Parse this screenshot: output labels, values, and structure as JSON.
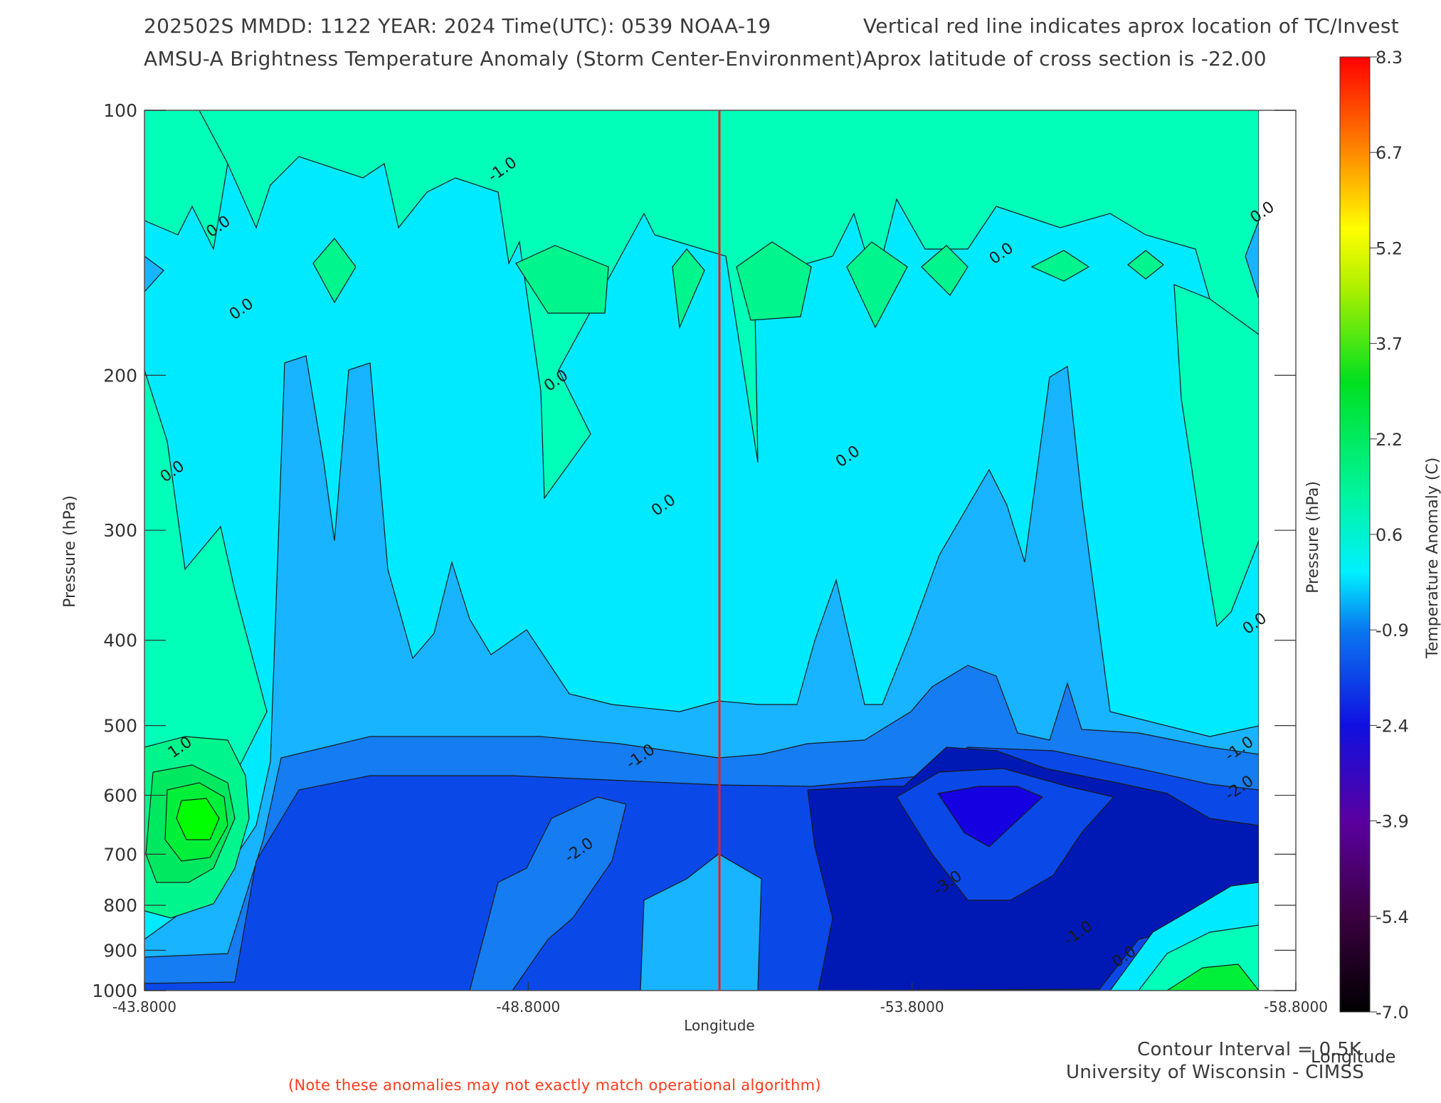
{
  "header": {
    "line1_left": "202502S  MMDD: 1122 YEAR: 2024 Time(UTC): 0539 NOAA-19",
    "line1_right": "Vertical red line indicates aprox location of TC/Invest",
    "line2_left": "AMSU-A Brightness Temperature Anomaly (Storm Center-Environment)",
    "line2_right": "Aprox latitude of cross section is -22.00"
  },
  "footer": {
    "contour_interval": "Contour Interval = 0.5K",
    "institution": "University of Wisconsin - CIMSS",
    "note": "(Note these anomalies may not exactly match operational algorithm)"
  },
  "colors": {
    "red_line": "#ff1a1a",
    "levels": [
      "#0019b5",
      "#0a48e8",
      "#157cf2",
      "#18b4ff",
      "#00eaff",
      "#00ffb9",
      "#00f58c",
      "#00e860",
      "#00f03a"
    ]
  },
  "chart_data": {
    "type": "contour",
    "title": "AMSU-A Brightness Temperature Anomaly (Storm Center-Environment)",
    "xlabel": "Longitude",
    "ylabel": "Pressure (hPa)",
    "y2label": "Pressure (hPa)",
    "x2label": "Longitude",
    "xlim": [
      -43.8,
      -58.8
    ],
    "ylim": [
      1000,
      100
    ],
    "yscale": "log",
    "x_ticks": [
      "-43.8000",
      "-48.8000",
      "-53.8000",
      "-58.8000"
    ],
    "y_ticks": [
      100,
      200,
      300,
      400,
      500,
      600,
      700,
      800,
      900,
      1000
    ],
    "storm_longitude": -51.3,
    "cross_section_latitude": -22.0,
    "contour_interval_K": 0.5,
    "contour_labels": [
      {
        "text": "-1.0",
        "lon": -48.5,
        "p": 118
      },
      {
        "text": "0.0",
        "lon": -44.8,
        "p": 137
      },
      {
        "text": "0.0",
        "lon": -45.1,
        "p": 170
      },
      {
        "text": "0.0",
        "lon": -49.2,
        "p": 205
      },
      {
        "text": "0.0",
        "lon": -44.2,
        "p": 260
      },
      {
        "text": "0.0",
        "lon": -50.6,
        "p": 284
      },
      {
        "text": "0.0",
        "lon": -53.0,
        "p": 250
      },
      {
        "text": "0.0",
        "lon": -55.0,
        "p": 147
      },
      {
        "text": "0.0",
        "lon": -58.4,
        "p": 132
      },
      {
        "text": "0.0",
        "lon": -58.3,
        "p": 387
      },
      {
        "text": "1.0",
        "lon": -44.3,
        "p": 535
      },
      {
        "text": "-1.0",
        "lon": -50.3,
        "p": 548
      },
      {
        "text": "-2.0",
        "lon": -49.5,
        "p": 700
      },
      {
        "text": "-3.0",
        "lon": -54.3,
        "p": 763
      },
      {
        "text": "-1.0",
        "lon": -56.0,
        "p": 870
      },
      {
        "text": "0.0",
        "lon": -56.6,
        "p": 925
      },
      {
        "text": "-1.0",
        "lon": -58.1,
        "p": 537
      },
      {
        "text": "-2.0",
        "lon": -58.1,
        "p": 595
      }
    ],
    "anomaly_summary": [
      {
        "feature": "warm core maximum",
        "lon": -44.5,
        "p": 620,
        "value_C": 2.0
      },
      {
        "feature": "cold minimum",
        "lon": -54.2,
        "p": 640,
        "value_C": -3.5
      }
    ],
    "colorbar": {
      "label": "Temperature Anomaly (C)",
      "ticks": [
        "8.3",
        "6.7",
        "5.2",
        "3.7",
        "2.2",
        "0.6",
        "-0.9",
        "-2.4",
        "-3.9",
        "-5.4",
        "-7.0"
      ],
      "range": [
        -7.0,
        8.3
      ]
    }
  }
}
